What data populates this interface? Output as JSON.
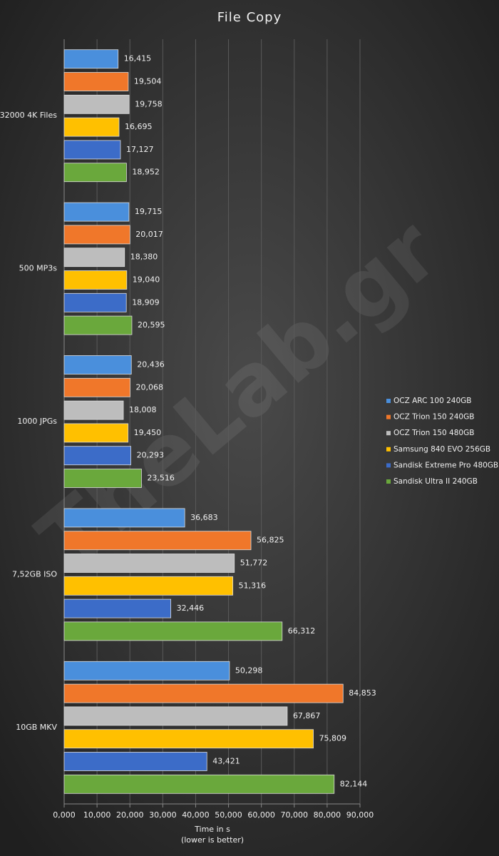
{
  "chart_data": {
    "type": "bar",
    "orientation": "horizontal",
    "title": "File Copy",
    "watermark": "TheLab.gr",
    "xlabel": [
      "Time in s",
      "(lower is better)"
    ],
    "categories": [
      "32000 4K Files",
      "500 MP3s",
      "1000 JPGs",
      "7,52GB ISO",
      "10GB MKV"
    ],
    "series": [
      {
        "name": "OCZ ARC 100 240GB",
        "color": "#4a8fdc",
        "values": [
          16.415,
          19.715,
          20.436,
          36.683,
          50.298
        ],
        "value_labels": [
          "16,415",
          "19,715",
          "20,436",
          "36,683",
          "50,298"
        ]
      },
      {
        "name": "OCZ Trion 150 240GB",
        "color": "#f0772a",
        "values": [
          19.504,
          20.017,
          20.068,
          56.825,
          84.853
        ],
        "value_labels": [
          "19,504",
          "20,017",
          "20,068",
          "56,825",
          "84,853"
        ]
      },
      {
        "name": "OCZ Trion 150 480GB",
        "color": "#bdbdbd",
        "values": [
          19.758,
          18.38,
          18.008,
          51.772,
          67.867
        ],
        "value_labels": [
          "19,758",
          "18,380",
          "18,008",
          "51,772",
          "67,867"
        ]
      },
      {
        "name": "Samsung 840 EVO 256GB",
        "color": "#ffc000",
        "values": [
          16.695,
          19.04,
          19.45,
          51.316,
          75.809
        ],
        "value_labels": [
          "16,695",
          "19,040",
          "19,450",
          "51,316",
          "75,809"
        ]
      },
      {
        "name": "Sandisk Extreme Pro 480GB",
        "color": "#3c6cc8",
        "values": [
          17.127,
          18.909,
          20.293,
          32.446,
          43.421
        ],
        "value_labels": [
          "17,127",
          "18,909",
          "20,293",
          "32,446",
          "43,421"
        ]
      },
      {
        "name": "Sandisk Ultra II 240GB",
        "color": "#6aa83c",
        "values": [
          18.952,
          20.595,
          23.516,
          66.312,
          82.144
        ],
        "value_labels": [
          "18,952",
          "20,595",
          "23,516",
          "66,312",
          "82,144"
        ]
      }
    ],
    "xlim": [
      0,
      90
    ],
    "xticks": [
      {
        "value": 0,
        "label": "0,000"
      },
      {
        "value": 10,
        "label": "10,000"
      },
      {
        "value": 20,
        "label": "20,000"
      },
      {
        "value": 30,
        "label": "30,000"
      },
      {
        "value": 40,
        "label": "40,000"
      },
      {
        "value": 50,
        "label": "50,000"
      },
      {
        "value": 60,
        "label": "60,000"
      },
      {
        "value": 70,
        "label": "70,000"
      },
      {
        "value": 80,
        "label": "80,000"
      },
      {
        "value": 90,
        "label": "90,000"
      }
    ],
    "grid": true,
    "legend": "right"
  }
}
